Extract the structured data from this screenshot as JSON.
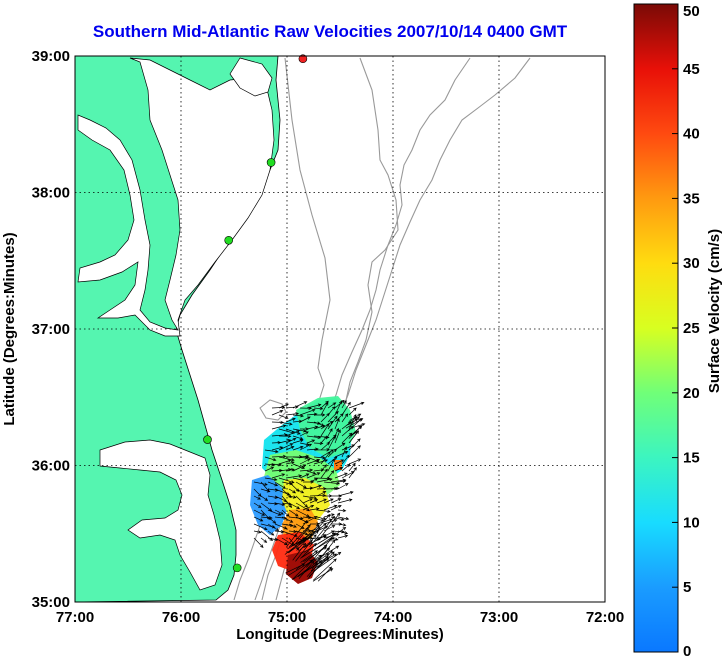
{
  "title": "Southern Mid-Atlantic Raw Velocities 2007/10/14 0400 GMT",
  "x_axis": {
    "label": "Longitude (Degrees:Minutes)",
    "ticks": [
      "77:00",
      "76:00",
      "75:00",
      "74:00",
      "73:00",
      "72:00"
    ]
  },
  "y_axis": {
    "label": "Latitude (Degrees:Minutes)",
    "ticks": [
      "39:00",
      "38:00",
      "37:00",
      "36:00",
      "35:00"
    ]
  },
  "colorbar": {
    "label": "Surface Velocity (cm/s)",
    "ticks": [
      "50",
      "45",
      "40",
      "35",
      "30",
      "25",
      "20",
      "15",
      "10",
      "5",
      "0"
    ],
    "min": 0,
    "max": 50
  },
  "colors": {
    "land": "#55f5b0",
    "water": "#ffffff",
    "bathymetry": "#999999",
    "grid": "#000000",
    "station_active": "#22dd22",
    "station_highlight": "#ee2222"
  },
  "map": {
    "lon_range": [
      -77,
      -72
    ],
    "lat_range": [
      35,
      39
    ],
    "grid": true,
    "stations": [
      {
        "lon": -74.85,
        "lat": 38.98,
        "status": "highlight"
      },
      {
        "lon": -75.15,
        "lat": 38.22,
        "status": "active"
      },
      {
        "lon": -75.55,
        "lat": 37.65,
        "status": "active"
      },
      {
        "lon": -75.75,
        "lat": 36.19,
        "status": "active"
      },
      {
        "lon": -75.47,
        "lat": 35.25,
        "status": "active"
      }
    ]
  }
}
